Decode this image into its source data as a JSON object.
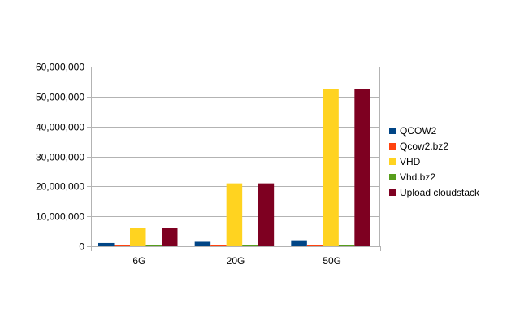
{
  "chart_data": {
    "type": "bar",
    "title": "",
    "xlabel": "",
    "ylabel": "",
    "categories": [
      "6G",
      "20G",
      "50G"
    ],
    "series": [
      {
        "name": "QCOW2",
        "color": "#004586",
        "values": [
          1100000,
          1500000,
          2000000
        ]
      },
      {
        "name": "Qcow2.bz2",
        "color": "#ff420e",
        "values": [
          200000,
          200000,
          200000
        ]
      },
      {
        "name": "VHD",
        "color": "#ffd320",
        "values": [
          6200000,
          21000000,
          52500000
        ]
      },
      {
        "name": "Vhd.bz2",
        "color": "#579d1c",
        "values": [
          200000,
          200000,
          200000
        ]
      },
      {
        "name": "Upload cloudstack",
        "color": "#7e0021",
        "values": [
          6200000,
          21000000,
          52500000
        ]
      }
    ],
    "ylim": [
      0,
      60000000
    ],
    "yticks": [
      0,
      10000000,
      20000000,
      30000000,
      40000000,
      50000000,
      60000000
    ],
    "ytick_labels": [
      "0",
      "10,000,000",
      "20,000,000",
      "30,000,000",
      "40,000,000",
      "50,000,000",
      "60,000,000"
    ],
    "grid": "horizontal",
    "legend_position": "right"
  }
}
